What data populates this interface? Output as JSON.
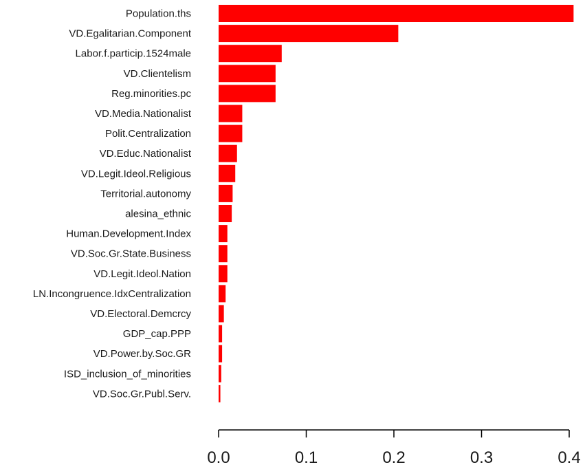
{
  "chart_data": {
    "type": "bar",
    "orientation": "horizontal",
    "bar_color": "#ff0000",
    "axis_color": "#000000",
    "title": "",
    "xlabel": "",
    "ylabel": "",
    "grid": false,
    "xlim": [
      0,
      0.4
    ],
    "xticks": [
      0.0,
      0.1,
      0.2,
      0.3,
      0.4
    ],
    "xtick_labels": [
      "0.0",
      "0.1",
      "0.2",
      "0.3",
      "0.4"
    ],
    "categories": [
      "Population.ths",
      "VD.Egalitarian.Component",
      "Labor.f.particip.1524male",
      "VD.Clientelism",
      "Reg.minorities.pc",
      "VD.Media.Nationalist",
      "Polit.Centralization",
      "VD.Educ.Nationalist",
      "VD.Legit.Ideol.Religious",
      "Territorial.autonomy",
      "alesina_ethnic",
      "Human.Development.Index",
      "VD.Soc.Gr.State.Business",
      "VD.Legit.Ideol.Nation",
      "LN.Incongruence.IdxCentralization",
      "VD.Electoral.Demcrcy",
      "GDP_cap.PPP",
      "VD.Power.by.Soc.GR",
      "ISD_inclusion_of_minorities",
      "VD.Soc.Gr.Publ.Serv."
    ],
    "values": [
      0.405,
      0.205,
      0.072,
      0.065,
      0.065,
      0.027,
      0.027,
      0.021,
      0.019,
      0.016,
      0.015,
      0.01,
      0.01,
      0.01,
      0.008,
      0.006,
      0.004,
      0.004,
      0.003,
      0.002
    ]
  }
}
